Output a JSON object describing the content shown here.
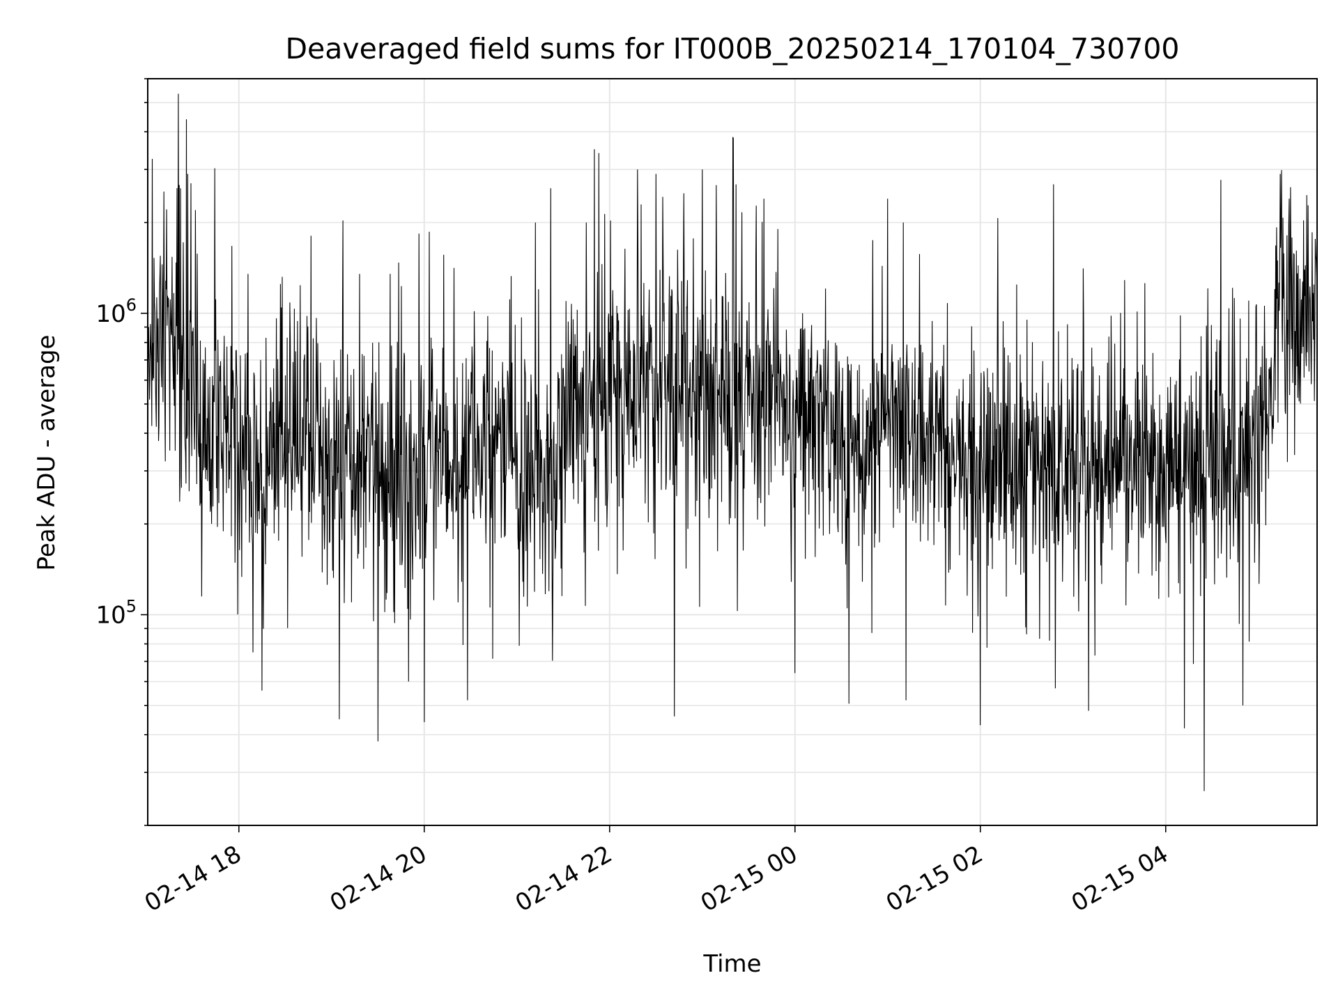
{
  "chart_data": {
    "type": "line",
    "title": "Deaveraged field sums for IT000B_20250214_170104_730700",
    "xlabel": "Time",
    "ylabel": "Peak ADU - average",
    "yscale": "log",
    "ylim": [
      20000,
      6000000
    ],
    "xlim": [
      "2025-02-14 17:01",
      "2025-02-15 05:38"
    ],
    "grid": true,
    "line_color": "#000000",
    "x_ticks": [
      {
        "t": "2025-02-14 18:00",
        "label": "02-14 18"
      },
      {
        "t": "2025-02-14 20:00",
        "label": "02-14 20"
      },
      {
        "t": "2025-02-14 22:00",
        "label": "02-14 22"
      },
      {
        "t": "2025-02-15 00:00",
        "label": "02-15 00"
      },
      {
        "t": "2025-02-15 02:00",
        "label": "02-15 02"
      },
      {
        "t": "2025-02-15 04:00",
        "label": "02-15 04"
      }
    ],
    "y_ticks": [
      {
        "value": 100000,
        "base": "10",
        "exp": "5"
      },
      {
        "value": 1000000,
        "base": "10",
        "exp": "6"
      }
    ],
    "series": [
      {
        "baseline": [
          {
            "t": "2025-02-14 17:01",
            "y": 700000
          },
          {
            "t": "2025-02-14 17:20",
            "y": 900000
          },
          {
            "t": "2025-02-14 17:25",
            "y": 600000
          },
          {
            "t": "2025-02-14 17:40",
            "y": 380000
          },
          {
            "t": "2025-02-14 19:00",
            "y": 330000
          },
          {
            "t": "2025-02-14 19:45",
            "y": 300000
          },
          {
            "t": "2025-02-14 20:30",
            "y": 360000
          },
          {
            "t": "2025-02-14 20:55",
            "y": 420000
          },
          {
            "t": "2025-02-14 21:00",
            "y": 250000
          },
          {
            "t": "2025-02-14 21:20",
            "y": 290000
          },
          {
            "t": "2025-02-14 21:40",
            "y": 480000
          },
          {
            "t": "2025-02-14 22:30",
            "y": 600000
          },
          {
            "t": "2025-02-14 23:30",
            "y": 520000
          },
          {
            "t": "2025-02-15 00:10",
            "y": 480000
          },
          {
            "t": "2025-02-15 00:40",
            "y": 330000
          },
          {
            "t": "2025-02-15 01:00",
            "y": 450000
          },
          {
            "t": "2025-02-15 01:40",
            "y": 330000
          },
          {
            "t": "2025-02-15 03:00",
            "y": 300000
          },
          {
            "t": "2025-02-15 04:30",
            "y": 320000
          },
          {
            "t": "2025-02-15 05:08",
            "y": 420000
          },
          {
            "t": "2025-02-15 05:12",
            "y": 1100000
          },
          {
            "t": "2025-02-15 05:38",
            "y": 1000000
          }
        ],
        "peaks": [
          {
            "t": "2025-02-14 17:26",
            "y": 4400000
          },
          {
            "t": "2025-02-14 17:27",
            "y": 2900000
          },
          {
            "t": "2025-02-14 17:29",
            "y": 2700000
          },
          {
            "t": "2025-02-14 17:32",
            "y": 2200000
          },
          {
            "t": "2025-02-14 18:06",
            "y": 1350000
          },
          {
            "t": "2025-02-14 18:27",
            "y": 1250000
          },
          {
            "t": "2025-02-14 19:18",
            "y": 1350000
          },
          {
            "t": "2025-02-14 19:38",
            "y": 1350000
          },
          {
            "t": "2025-02-14 21:12",
            "y": 2000000
          },
          {
            "t": "2025-02-14 21:22",
            "y": 2600000
          },
          {
            "t": "2025-02-14 21:45",
            "y": 2000000
          },
          {
            "t": "2025-02-14 21:50",
            "y": 3500000
          },
          {
            "t": "2025-02-14 21:53",
            "y": 3400000
          },
          {
            "t": "2025-02-14 22:18",
            "y": 3000000
          },
          {
            "t": "2025-02-14 22:30",
            "y": 2900000
          },
          {
            "t": "2025-02-14 22:48",
            "y": 2500000
          },
          {
            "t": "2025-02-14 23:00",
            "y": 3000000
          },
          {
            "t": "2025-02-14 23:20",
            "y": 3800000
          },
          {
            "t": "2025-02-14 23:40",
            "y": 2400000
          },
          {
            "t": "2025-02-15 01:00",
            "y": 2400000
          },
          {
            "t": "2025-02-15 01:10",
            "y": 2000000
          },
          {
            "t": "2025-02-15 05:14",
            "y": 2900000
          },
          {
            "t": "2025-02-15 05:20",
            "y": 2400000
          }
        ],
        "dips": [
          {
            "t": "2025-02-14 18:09",
            "y": 75000
          },
          {
            "t": "2025-02-14 18:15",
            "y": 56000
          },
          {
            "t": "2025-02-14 19:05",
            "y": 45000
          },
          {
            "t": "2025-02-14 19:30",
            "y": 38000
          },
          {
            "t": "2025-02-14 19:50",
            "y": 60000
          },
          {
            "t": "2025-02-14 20:00",
            "y": 44000
          },
          {
            "t": "2025-02-14 20:28",
            "y": 52000
          },
          {
            "t": "2025-02-14 22:42",
            "y": 46000
          },
          {
            "t": "2025-02-15 00:00",
            "y": 64000
          },
          {
            "t": "2025-02-15 01:12",
            "y": 52000
          },
          {
            "t": "2025-02-15 02:00",
            "y": 43000
          },
          {
            "t": "2025-02-15 03:10",
            "y": 48000
          },
          {
            "t": "2025-02-15 04:12",
            "y": 42000
          },
          {
            "t": "2025-02-15 04:25",
            "y": 26000
          },
          {
            "t": "2025-02-15 04:50",
            "y": 50000
          }
        ]
      }
    ]
  }
}
